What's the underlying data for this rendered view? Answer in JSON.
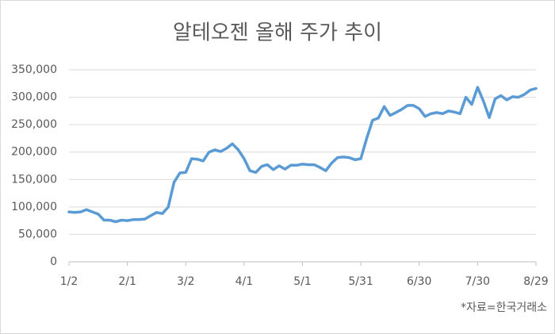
{
  "chart_data": {
    "type": "line",
    "title": "알테오젠 올해 주가 추이",
    "source": "*자료=한국거래소",
    "categories": [
      "1/2",
      null,
      null,
      null,
      null,
      null,
      null,
      null,
      null,
      null,
      "2/1",
      null,
      null,
      null,
      null,
      null,
      null,
      null,
      null,
      null,
      "3/2",
      null,
      null,
      null,
      null,
      null,
      null,
      null,
      null,
      null,
      "4/1",
      null,
      null,
      null,
      null,
      null,
      null,
      null,
      null,
      null,
      "5/1",
      null,
      null,
      null,
      null,
      null,
      null,
      null,
      null,
      null,
      "5/31",
      null,
      null,
      null,
      null,
      null,
      null,
      null,
      null,
      null,
      "6/30",
      null,
      null,
      null,
      null,
      null,
      null,
      null,
      null,
      null,
      "7/30",
      null,
      null,
      null,
      null,
      null,
      null,
      null,
      null,
      null,
      "8/29"
    ],
    "series": [
      {
        "color": "#5b9bd5",
        "values": [
          91000,
          90000,
          91000,
          95000,
          91000,
          87000,
          76000,
          76000,
          73000,
          76000,
          75000,
          77000,
          77000,
          78000,
          84000,
          90000,
          88000,
          100000,
          145000,
          162000,
          163000,
          188000,
          187000,
          184000,
          200000,
          204000,
          201000,
          207000,
          215000,
          204000,
          188000,
          166000,
          163000,
          174000,
          177000,
          168000,
          175000,
          169000,
          176000,
          176000,
          178000,
          177000,
          177000,
          172000,
          166000,
          180000,
          190000,
          191000,
          190000,
          186000,
          188000,
          225000,
          258000,
          262000,
          283000,
          267000,
          272000,
          278000,
          285000,
          285000,
          279000,
          265000,
          270000,
          272000,
          270000,
          275000,
          273000,
          270000,
          300000,
          287000,
          318000,
          293000,
          263000,
          297000,
          303000,
          295000,
          301000,
          300000,
          305000,
          313000,
          316000
        ]
      }
    ],
    "ylim": [
      0,
      350000
    ],
    "yticks": [
      0,
      {
        "value": 50000,
        "label": "50,000"
      },
      {
        "value": 100000,
        "label": "100,000"
      },
      {
        "value": 150000,
        "label": "150,000"
      },
      {
        "value": 200000,
        "label": "200,000"
      },
      {
        "value": 250000,
        "label": "250,000"
      },
      {
        "value": 300000,
        "label": "300,000"
      },
      {
        "value": 350000,
        "label": "350,000"
      }
    ],
    "grid": true
  }
}
